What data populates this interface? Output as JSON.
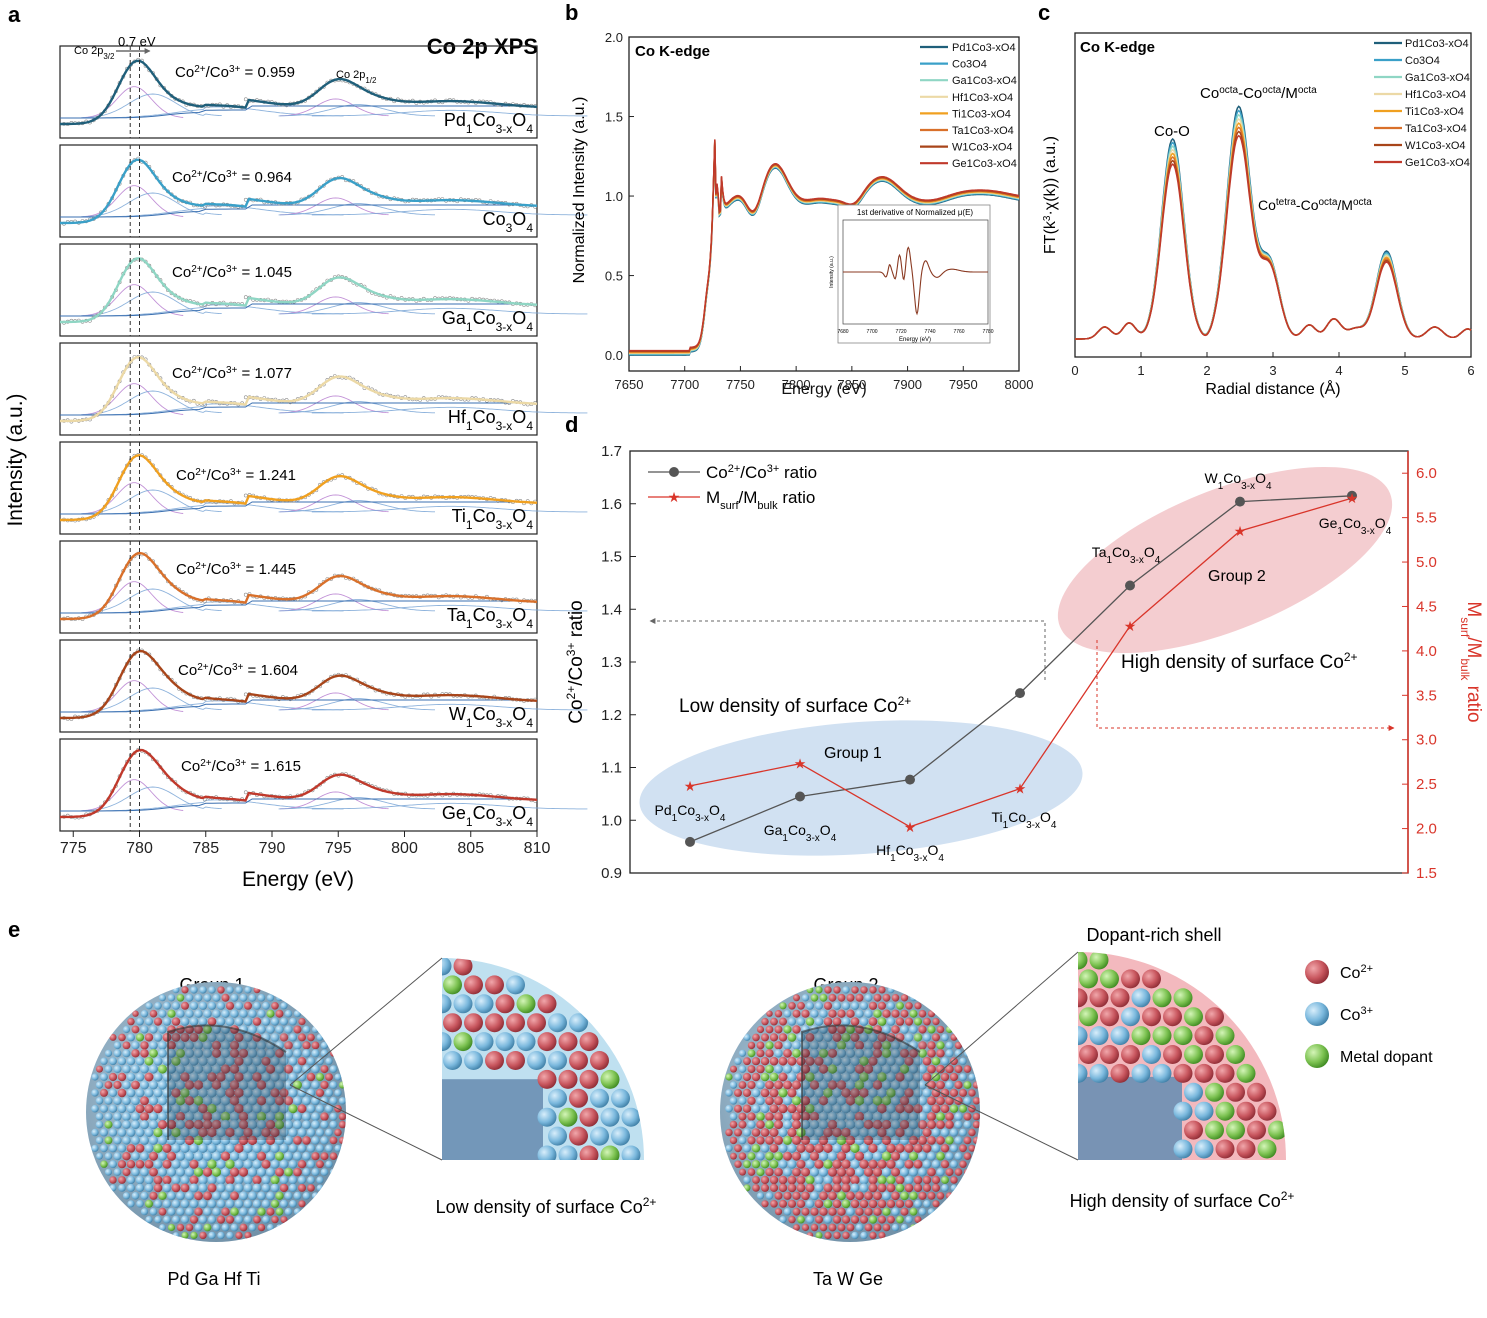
{
  "colors": {
    "pd": "#1f5f7a",
    "co3o4": "#3aa0c8",
    "ga": "#8fd6c4",
    "hf": "#ecd9a6",
    "ti": "#f0a020",
    "ta": "#d9702a",
    "w": "#a8451a",
    "ge": "#c0392b",
    "ratio_line": "#555555",
    "msurf_line": "#d9352a",
    "group1_fill": "#c9dcf0",
    "group2_fill": "#f2c4c8",
    "co2plus": "#c8565e",
    "co3plus": "#7ab8dd",
    "dopant": "#7cc251",
    "envelope": "#3a6fb0",
    "raw": "#909090",
    "fit_peak": "#b77fd0"
  },
  "panels": {
    "a": "a",
    "b": "b",
    "c": "c",
    "d": "d",
    "e": "e"
  },
  "chart_data": [
    {
      "panel": "a",
      "type": "line",
      "title": "Co 2p XPS",
      "xlabel": "Energy (eV)",
      "ylabel": "Intensity (a.u.)",
      "xlim": [
        774,
        810
      ],
      "x_ticks": [
        "775",
        "780",
        "785",
        "790",
        "795",
        "800",
        "805",
        "810"
      ],
      "annotations": {
        "shift": "0.7 eV",
        "peak1_main": "Co 2p",
        "peak1_sub": "3/2",
        "peak2_main": "Co 2p",
        "peak2_sub": "1/2"
      },
      "ratio_label_prefix": "Co",
      "ratio_label_sup1": "2+",
      "ratio_label_mid": "/Co",
      "ratio_label_sup2": "3+",
      "series": [
        {
          "name": "Pd1Co3-xO4",
          "label_main": "Pd",
          "label_parts": [
            "Pd",
            "1",
            "Co",
            "3-x",
            "O",
            "4"
          ],
          "ratio_text": " = 0.959",
          "ratio": 0.959,
          "color_key": "pd"
        },
        {
          "name": "Co3O4",
          "label_parts": [
            "Co",
            "3",
            "O",
            "4"
          ],
          "ratio_text": " = 0.964",
          "ratio": 0.964,
          "color_key": "co3o4"
        },
        {
          "name": "Ga1Co3-xO4",
          "label_parts": [
            "Ga",
            "1",
            "Co",
            "3-x",
            "O",
            "4"
          ],
          "ratio_text": " = 1.045",
          "ratio": 1.045,
          "color_key": "ga"
        },
        {
          "name": "Hf1Co3-xO4",
          "label_parts": [
            "Hf",
            "1",
            "Co",
            "3-x",
            "O",
            "4"
          ],
          "ratio_text": " = 1.077",
          "ratio": 1.077,
          "color_key": "hf"
        },
        {
          "name": "Ti1Co3-xO4",
          "label_parts": [
            "Ti",
            "1",
            "Co",
            "3-x",
            "O",
            "4"
          ],
          "ratio_text": " = 1.241",
          "ratio": 1.241,
          "color_key": "ti"
        },
        {
          "name": "Ta1Co3-xO4",
          "label_parts": [
            "Ta",
            "1",
            "Co",
            "3-x",
            "O",
            "4"
          ],
          "ratio_text": " = 1.445",
          "ratio": 1.445,
          "color_key": "ta"
        },
        {
          "name": "W1Co3-xO4",
          "label_parts": [
            "W",
            "1",
            "Co",
            "3-x",
            "O",
            "4"
          ],
          "ratio_text": " = 1.604",
          "ratio": 1.604,
          "color_key": "w"
        },
        {
          "name": "Ge1Co3-xO4",
          "label_parts": [
            "Ge",
            "1",
            "Co",
            "3-x",
            "O",
            "4"
          ],
          "ratio_text": " = 1.615",
          "ratio": 1.615,
          "color_key": "ge"
        }
      ]
    },
    {
      "panel": "b",
      "type": "line",
      "title": "Co K-edge",
      "xlabel": "Energy (eV)",
      "ylabel": "Normalized Intensity (a.u.)",
      "xlim": [
        7650,
        8000
      ],
      "ylim": [
        -0.1,
        2.0
      ],
      "x_ticks": [
        "7650",
        "7700",
        "7750",
        "7800",
        "7850",
        "7900",
        "7950",
        "8000"
      ],
      "y_ticks": [
        "0.0",
        "0.5",
        "1.0",
        "1.5",
        "2.0"
      ],
      "inset": {
        "title": "1st derivative of Normalized μ(E)",
        "xlabel": "Energy (eV)",
        "ylabel": "Intensity (a.u.)",
        "x_ticks": [
          "7680",
          "7700",
          "7720",
          "7740",
          "7760",
          "7780"
        ]
      },
      "legend": [
        "Pd1Co3-xO4",
        "Co3O4",
        "Ga1Co3-xO4",
        "Hf1Co3-xO4",
        "Ti1Co3-xO4",
        "Ta1Co3-xO4",
        "W1Co3-xO4",
        "Ge1Co3-xO4"
      ]
    },
    {
      "panel": "c",
      "type": "line",
      "title": "Co K-edge",
      "xlabel": "Radial distance (Å)",
      "ylabel": "FT(k3·χ(k)) (a.u.)",
      "xlim": [
        0,
        6
      ],
      "x_ticks": [
        "0",
        "1",
        "2",
        "3",
        "4",
        "5",
        "6"
      ],
      "annotations": {
        "co_o": "Co-O",
        "octa": "Co^octa-Co^octa/M^octa",
        "tetra": "Co^tetra-Co^octa/M^octa"
      },
      "legend": [
        "Pd1Co3-xO4",
        "Co3O4",
        "Ga1Co3-xO4",
        "Hf1Co3-xO4",
        "Ti1Co3-xO4",
        "Ta1Co3-xO4",
        "W1Co3-xO4",
        "Ge1Co3-xO4"
      ]
    },
    {
      "panel": "d",
      "type": "line",
      "ylabel_left": "Co2+/Co3+ ratio",
      "ylabel_right": "Msurf/Mbulk ratio",
      "ylim_left": [
        0.9,
        1.7
      ],
      "ylim_right": [
        1.5,
        6.25
      ],
      "y_ticks_left": [
        "0.9",
        "1.0",
        "1.1",
        "1.2",
        "1.3",
        "1.4",
        "1.5",
        "1.6",
        "1.7"
      ],
      "y_ticks_right": [
        "1.5",
        "2.0",
        "2.5",
        "3.0",
        "3.5",
        "4.0",
        "4.5",
        "5.0",
        "5.5",
        "6.0"
      ],
      "categories": [
        "Pd1Co3-xO4",
        "Ga1Co3-xO4",
        "Hf1Co3-xO4",
        "Ti1Co3-xO4",
        "Ta1Co3-xO4",
        "W1Co3-xO4",
        "Ge1Co3-xO4"
      ],
      "series": [
        {
          "name": "Co2+/Co3+ ratio",
          "values": [
            0.959,
            1.045,
            1.077,
            1.241,
            1.445,
            1.604,
            1.615
          ],
          "axis": "left"
        },
        {
          "name": "Msurf/Mbulk ratio",
          "values": [
            2.48,
            2.73,
            2.02,
            2.45,
            4.28,
            5.35,
            5.72
          ],
          "axis": "right"
        }
      ],
      "legend_labels": {
        "s1_a": "Co",
        "s1_b": "2+",
        "s1_c": "/Co",
        "s1_d": "3+",
        "s1_e": " ratio",
        "s2_a": "M",
        "s2_b": "surf",
        "s2_c": "/M",
        "s2_d": "bulk",
        "s2_e": " ratio"
      },
      "annotations": {
        "group1": "Group 1",
        "group2": "Group 2",
        "low_density": "Low density of surface Co",
        "high_density": "High density of surface Co",
        "sup": "2+"
      }
    }
  ],
  "panel_e": {
    "group1_title": "Group 1",
    "group2_title": "Group 2",
    "group1_elements": "Pd Ga Hf Ti",
    "group2_elements": "Ta W Ge",
    "shell_label": "Dopant-rich shell",
    "low_density": "Low density of surface Co",
    "high_density": "High density of surface Co",
    "sup": "2+",
    "legend": [
      {
        "label_main": "Co",
        "label_sup": "2+",
        "color_key": "co2plus"
      },
      {
        "label_main": "Co",
        "label_sup": "3+",
        "color_key": "co3plus"
      },
      {
        "label_main": "Metal dopant",
        "label_sup": "",
        "color_key": "dopant"
      }
    ]
  }
}
